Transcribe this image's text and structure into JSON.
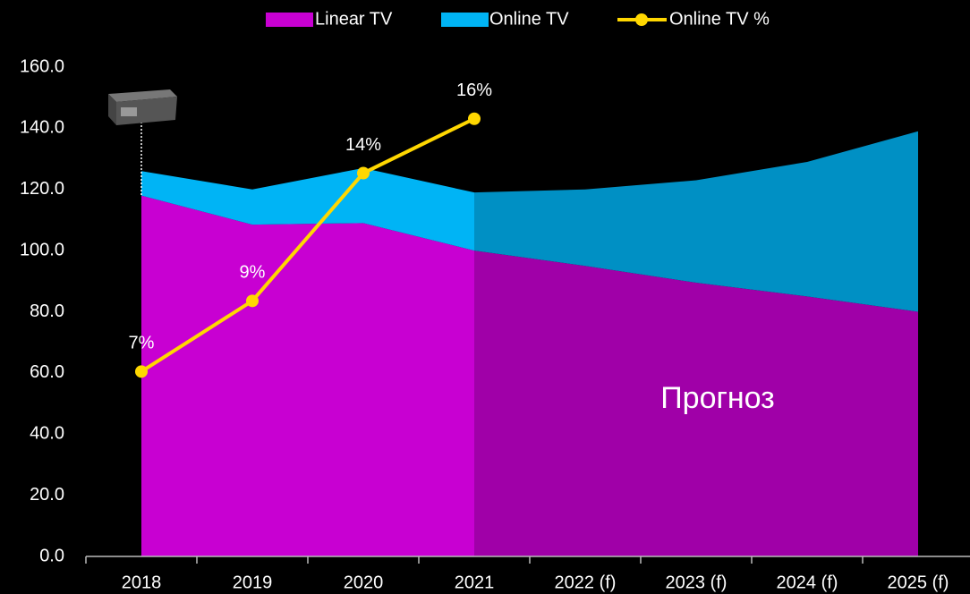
{
  "chart_data": {
    "type": "area",
    "categories": [
      "2018",
      "2019",
      "2020",
      "2021",
      "2022 (f)",
      "2023 (f)",
      "2024 (f)",
      "2025 (f)"
    ],
    "series": [
      {
        "name": "Linear TV",
        "type": "area",
        "color": "#c800d2",
        "values": [
          118,
          108.5,
          109,
          100,
          95,
          89.5,
          85,
          80
        ]
      },
      {
        "name": "Online TV",
        "type": "area",
        "color": "#00b4f5",
        "values": [
          8,
          11.5,
          18,
          19,
          25,
          33.5,
          44,
          59
        ]
      },
      {
        "name": "Online TV %",
        "type": "line",
        "axis": "y2",
        "color": "#ffd700",
        "values": [
          6.8,
          9.4,
          14.1,
          16.1,
          null,
          null,
          null,
          null
        ],
        "value_labels": [
          "7%",
          "9%",
          "14%",
          "16%",
          null,
          null,
          null,
          null
        ]
      }
    ],
    "ylim": [
      0,
      160
    ],
    "yticks": [
      {
        "value": 0,
        "label": "0.0"
      },
      {
        "value": 20,
        "label": "20.0"
      },
      {
        "value": 40,
        "label": "40.0"
      },
      {
        "value": 60,
        "label": "60.0"
      },
      {
        "value": 80,
        "label": "80.0"
      },
      {
        "value": 100,
        "label": "100.0"
      },
      {
        "value": 120,
        "label": "120.0"
      },
      {
        "value": 140,
        "label": "140.0"
      },
      {
        "value": 160,
        "label": "160.0"
      }
    ],
    "y2lim": [
      0,
      18
    ],
    "grid": false,
    "legend": "top",
    "annotations": [
      "Прогноз"
    ]
  }
}
